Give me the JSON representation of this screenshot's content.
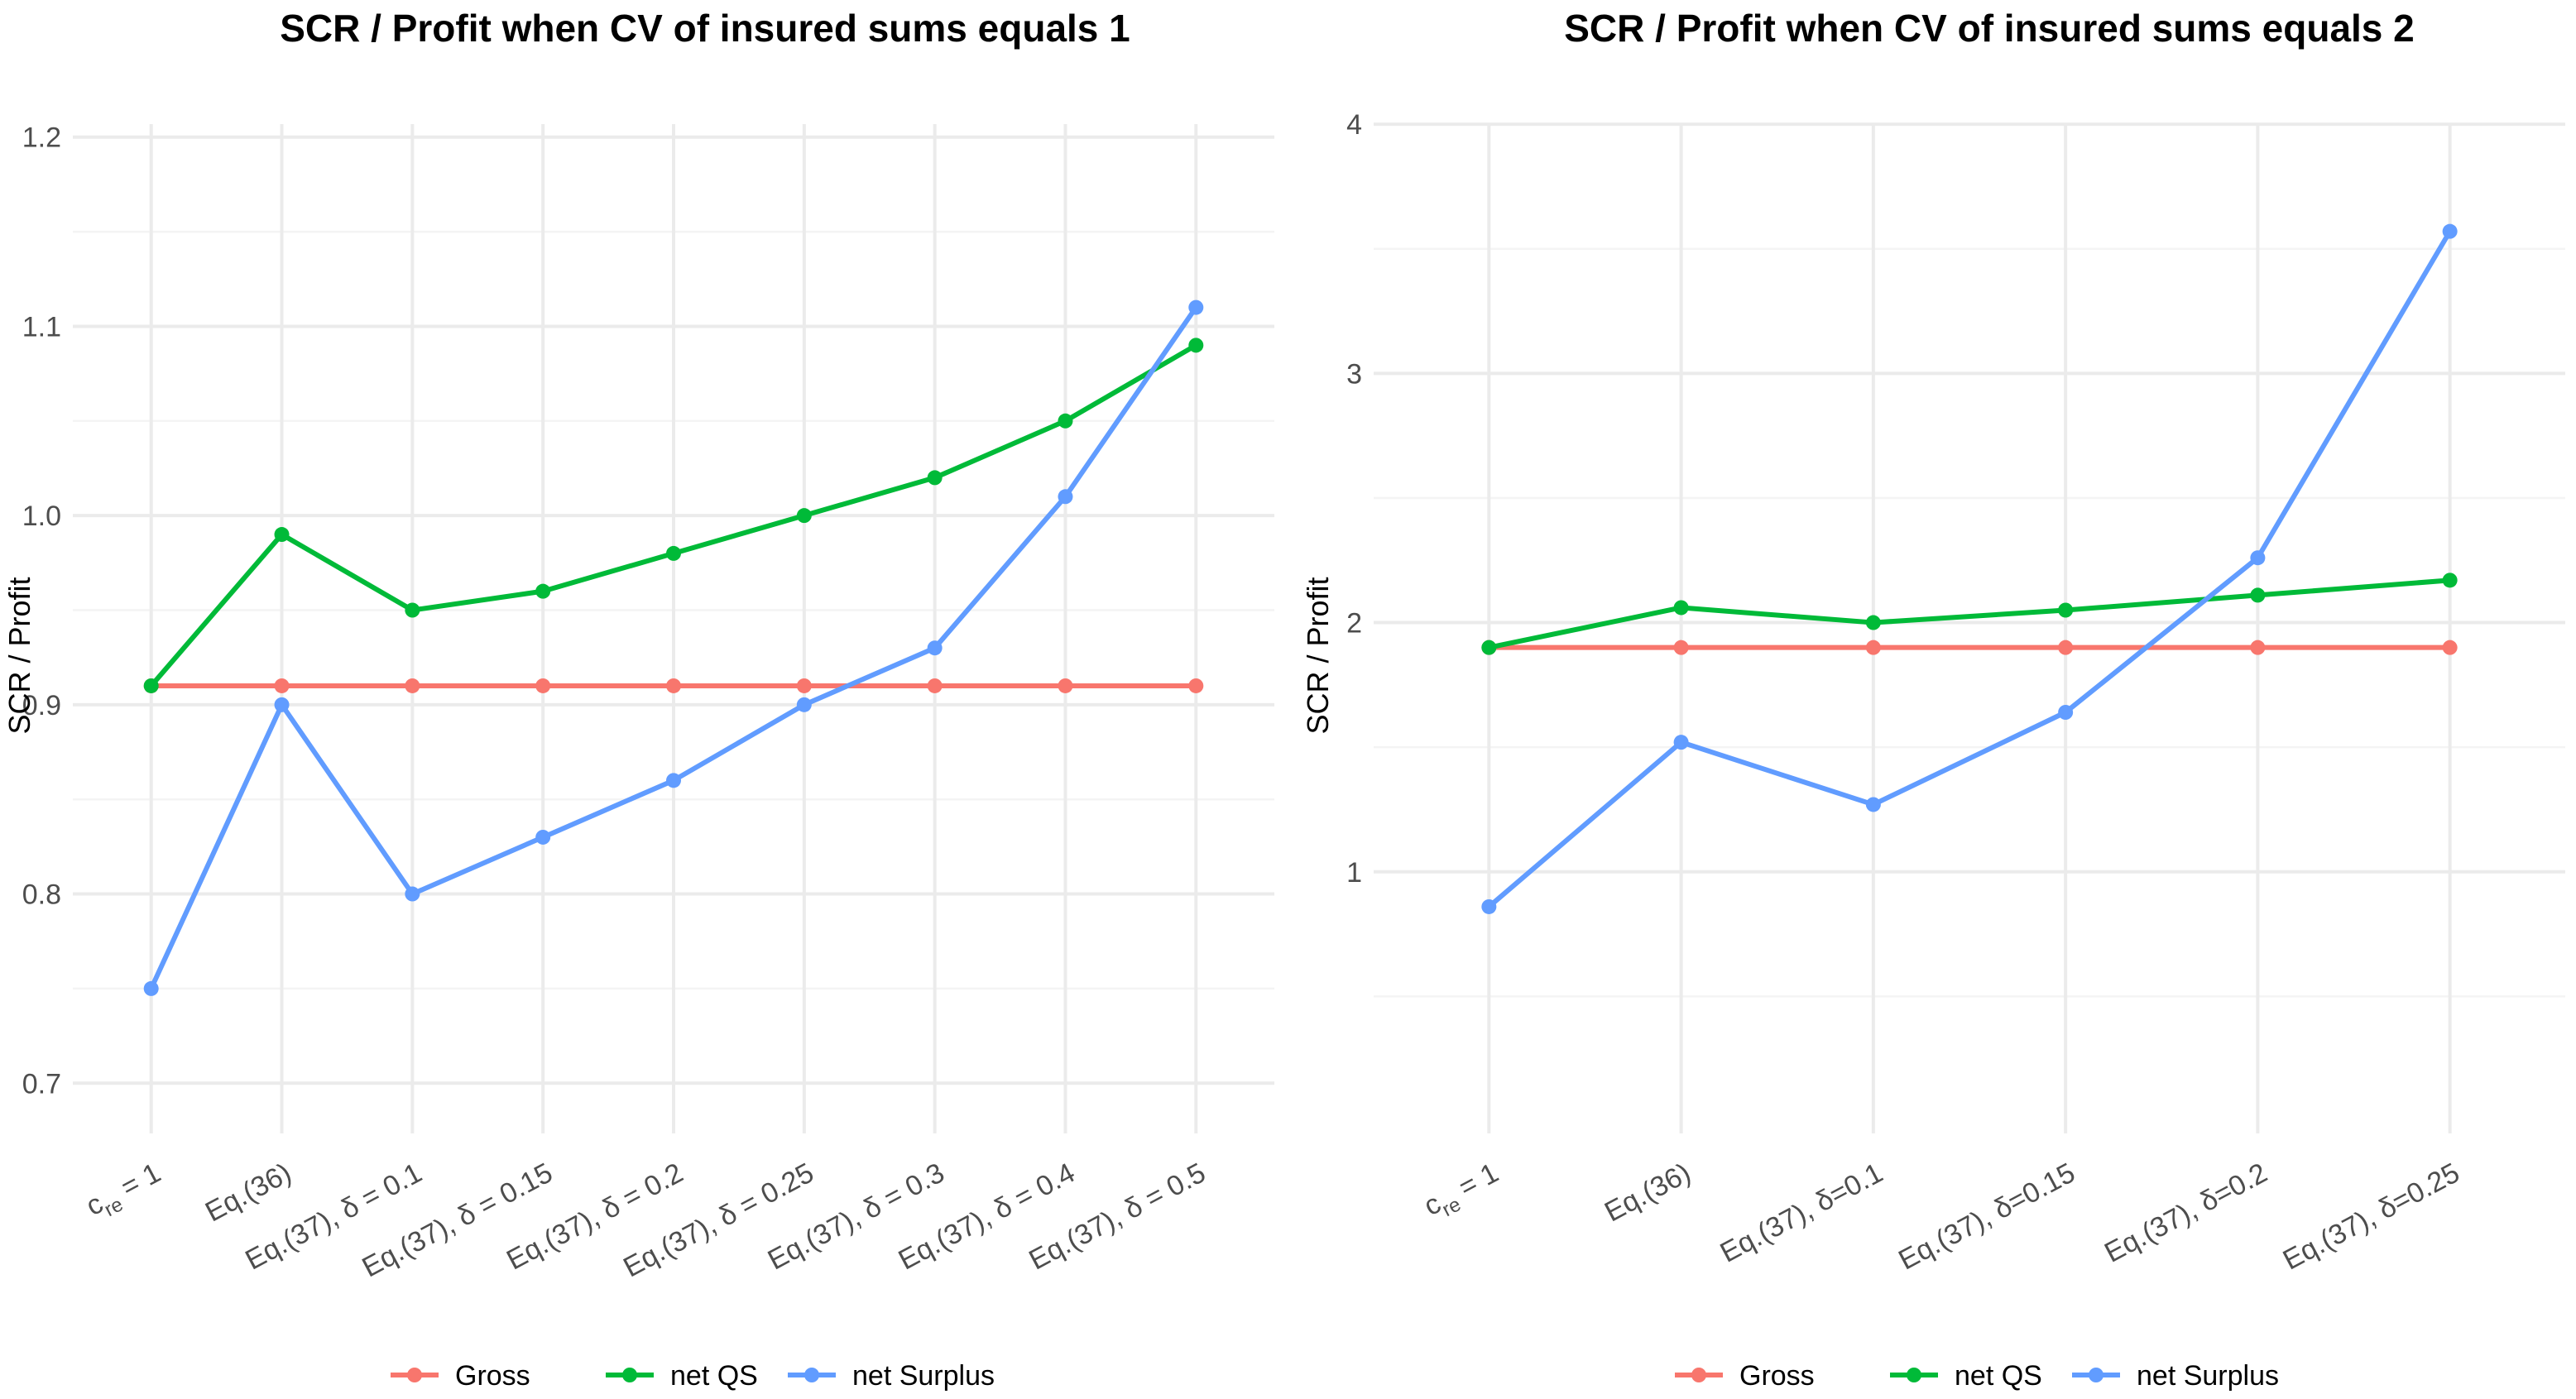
{
  "chart_data": [
    {
      "type": "line",
      "title": "SCR / Profit when CV of insured sums equals 1",
      "xlabel": "",
      "ylabel": "SCR / Profit",
      "ylim": [
        0.68,
        1.22
      ],
      "yticks": [
        "0.7",
        "0.8",
        "0.9",
        "1.0",
        "1.1",
        "1.2"
      ],
      "grid": true,
      "legend_position": "bottom",
      "categories": [
        {
          "main": "c",
          "sub": "re",
          "tail": " = 1"
        },
        {
          "main": "Eq.(36)"
        },
        {
          "main": "Eq.(37), δ = 0.1"
        },
        {
          "main": "Eq.(37), δ = 0.15"
        },
        {
          "main": "Eq.(37), δ = 0.2"
        },
        {
          "main": "Eq.(37), δ = 0.25"
        },
        {
          "main": "Eq.(37), δ = 0.3"
        },
        {
          "main": "Eq.(37), δ = 0.4"
        },
        {
          "main": "Eq.(37), δ = 0.5"
        }
      ],
      "series": [
        {
          "name": "Gross",
          "color": "#F8766D",
          "values": [
            0.91,
            0.91,
            0.91,
            0.91,
            0.91,
            0.91,
            0.91,
            0.91,
            0.91
          ]
        },
        {
          "name": "net QS",
          "color": "#00BA38",
          "values": [
            0.91,
            0.99,
            0.95,
            0.96,
            0.98,
            1.0,
            1.02,
            1.05,
            1.09
          ]
        },
        {
          "name": "net Surplus",
          "color": "#619CFF",
          "values": [
            0.75,
            0.9,
            0.8,
            0.83,
            0.86,
            0.9,
            0.93,
            1.01,
            1.11
          ]
        }
      ]
    },
    {
      "type": "line",
      "title": "SCR / Profit when CV of insured sums equals 2",
      "xlabel": "",
      "ylabel": "SCR / Profit",
      "ylim": [
        0.0,
        4.1
      ],
      "yticks": [
        "1",
        "2",
        "3",
        "4"
      ],
      "grid": true,
      "legend_position": "bottom",
      "categories": [
        {
          "main": "c",
          "sub": "re",
          "tail": " = 1"
        },
        {
          "main": "Eq.(36)"
        },
        {
          "main": "Eq.(37), δ=0.1"
        },
        {
          "main": "Eq.(37), δ=0.15"
        },
        {
          "main": "Eq.(37), δ=0.2"
        },
        {
          "main": "Eq.(37), δ=0.25"
        }
      ],
      "series": [
        {
          "name": "Gross",
          "color": "#F8766D",
          "values": [
            1.9,
            1.9,
            1.9,
            1.9,
            1.9,
            1.9
          ]
        },
        {
          "name": "net QS",
          "color": "#00BA38",
          "values": [
            1.9,
            2.06,
            2.0,
            2.05,
            2.11,
            2.17
          ]
        },
        {
          "name": "net Surplus",
          "color": "#619CFF",
          "values": [
            0.86,
            1.52,
            1.27,
            1.64,
            2.26,
            3.57
          ]
        }
      ]
    }
  ]
}
